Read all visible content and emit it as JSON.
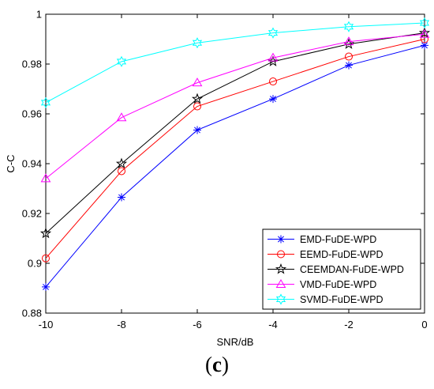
{
  "caption": {
    "open": "(",
    "letter": "c",
    "close": ")"
  },
  "chart_data": {
    "type": "line",
    "xlabel": "SNR/dB",
    "ylabel": "C-C",
    "xlim": [
      -10,
      0
    ],
    "ylim": [
      0.88,
      1.0
    ],
    "x_ticks": [
      -10,
      -8,
      -6,
      -4,
      -2,
      0
    ],
    "y_ticks": [
      0.88,
      0.9,
      0.92,
      0.94,
      0.96,
      0.98,
      1
    ],
    "x_tick_labels": [
      "-10",
      "-8",
      "-6",
      "-4",
      "-2",
      "0"
    ],
    "y_tick_labels": [
      "0.88",
      "0.9",
      "0.92",
      "0.94",
      "0.96",
      "0.98",
      "1"
    ],
    "grid": false,
    "legend_position": "bottom-right",
    "x": [
      -10,
      -8,
      -6,
      -4,
      -2,
      0
    ],
    "series": [
      {
        "name": "EMD-FuDE-WPD",
        "color": "#0000ff",
        "marker": "asterisk",
        "values": [
          0.8905,
          0.9265,
          0.9535,
          0.966,
          0.9795,
          0.9875
        ]
      },
      {
        "name": "EEMD-FuDE-WPD",
        "color": "#ff0000",
        "marker": "circle",
        "values": [
          0.902,
          0.937,
          0.963,
          0.973,
          0.983,
          0.99
        ]
      },
      {
        "name": "CEEMDAN-FuDE-WPD",
        "color": "#000000",
        "marker": "star",
        "values": [
          0.912,
          0.94,
          0.966,
          0.981,
          0.988,
          0.9925
        ]
      },
      {
        "name": "VMD-FuDE-WPD",
        "color": "#ff00ff",
        "marker": "triangle",
        "values": [
          0.934,
          0.9585,
          0.9725,
          0.9825,
          0.989,
          0.992
        ]
      },
      {
        "name": "SVMD-FuDE-WPD",
        "color": "#00ffff",
        "marker": "hexagram",
        "values": [
          0.9645,
          0.981,
          0.9885,
          0.9925,
          0.995,
          0.9965
        ]
      }
    ]
  }
}
